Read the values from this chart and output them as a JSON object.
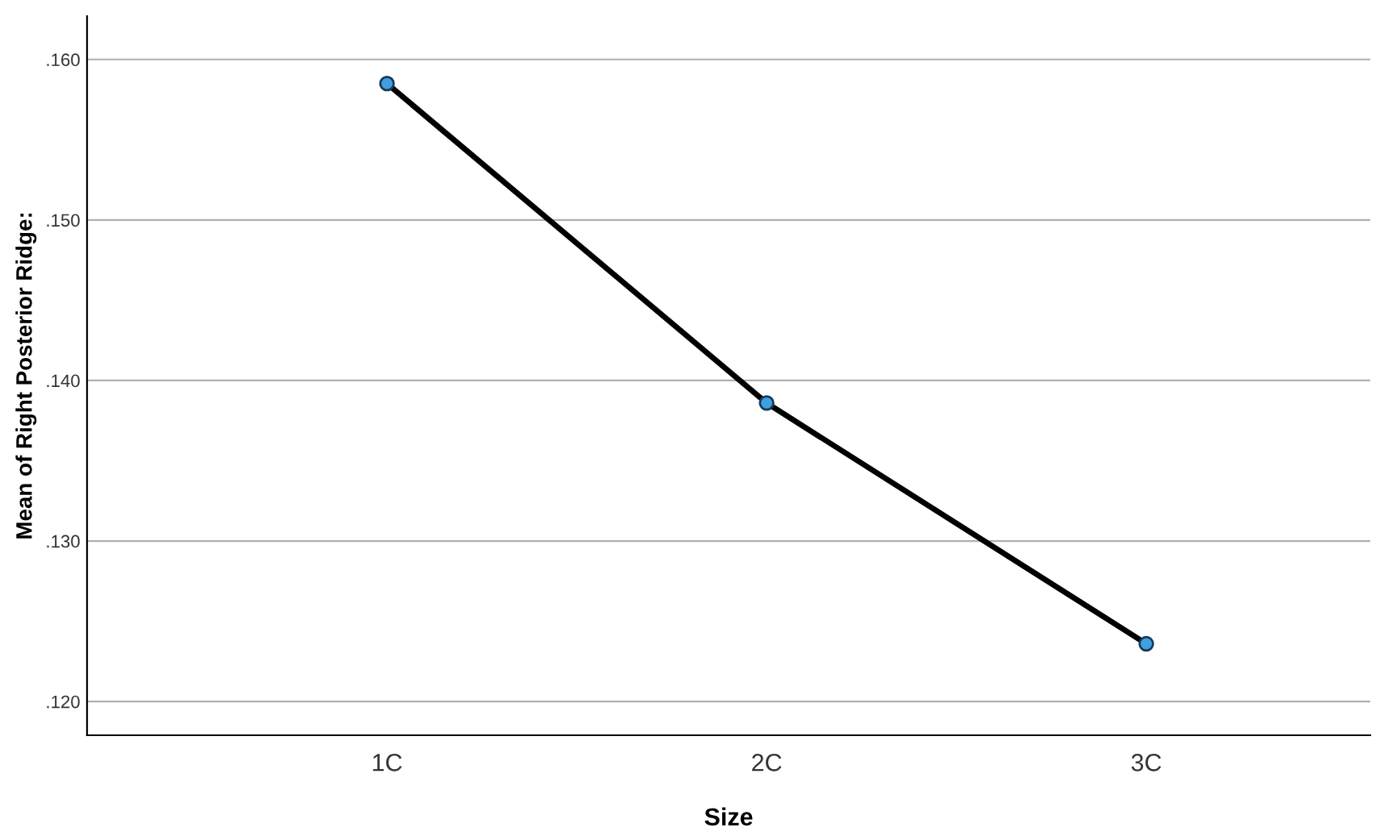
{
  "chart_data": {
    "type": "line",
    "xlabel": "Size",
    "ylabel": "Mean of Right Posterior Ridge:",
    "categories": [
      "1C",
      "2C",
      "3C"
    ],
    "series": [
      {
        "color": "#000000",
        "values": [
          0.1585,
          0.1386,
          0.1236
        ]
      }
    ],
    "ylim": [
      0.1179,
      0.1627
    ],
    "yticks": [
      {
        "value": 0.12,
        "label": ".120"
      },
      {
        "value": 0.13,
        "label": ".130"
      },
      {
        "value": 0.14,
        "label": ".140"
      },
      {
        "value": 0.15,
        "label": ".150"
      },
      {
        "value": 0.16,
        "label": ".160"
      }
    ],
    "grid": "y",
    "marker": "circle",
    "line_style": "solid",
    "legend": false
  }
}
